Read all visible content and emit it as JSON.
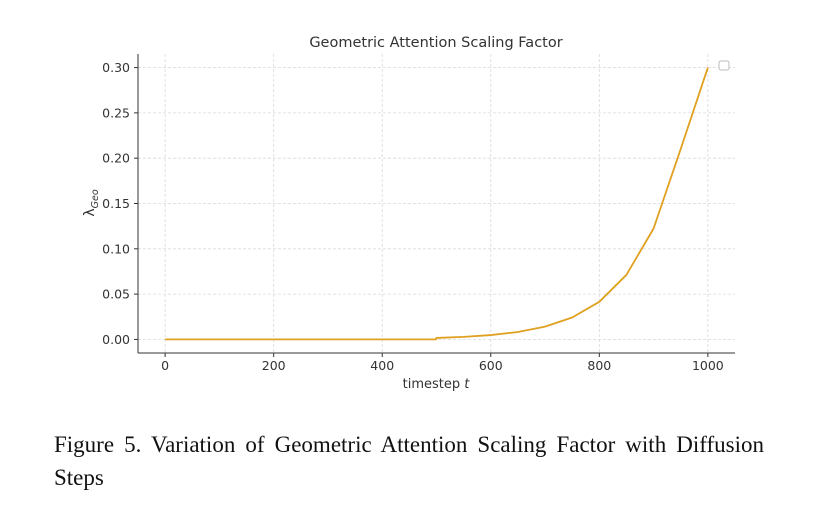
{
  "chart_data": {
    "type": "line",
    "title": "Geometric Attention Scaling Factor",
    "xlabel": "timestep",
    "xlabel_var": "t",
    "ylabel_main": "λ",
    "ylabel_sub": "Geo",
    "xlim": [
      -50,
      1050
    ],
    "ylim": [
      -0.015,
      0.315
    ],
    "xticks": [
      0,
      200,
      400,
      600,
      800,
      1000
    ],
    "xtick_labels": [
      "0",
      "200",
      "400",
      "600",
      "800",
      "1000"
    ],
    "yticks": [
      0.0,
      0.05,
      0.1,
      0.15,
      0.2,
      0.25,
      0.3
    ],
    "ytick_labels": [
      "0.00",
      "0.05",
      "0.10",
      "0.15",
      "0.20",
      "0.25",
      "0.30"
    ],
    "grid": true,
    "legend": "top-right, empty",
    "series": [
      {
        "color": "#e0a020",
        "x": [
          0,
          100,
          200,
          300,
          400,
          499,
          500,
          550,
          600,
          650,
          700,
          750,
          800,
          850,
          900,
          950,
          1000
        ],
        "y": [
          0.0,
          0.0,
          0.0,
          0.0,
          0.0,
          0.0,
          0.0016,
          0.0028,
          0.0048,
          0.0082,
          0.0141,
          0.0242,
          0.0415,
          0.0713,
          0.1224,
          0.2102,
          0.3
        ]
      }
    ]
  },
  "caption": "Figure 5. Variation of Geometric Attention Scaling Factor with Diffusion Steps"
}
